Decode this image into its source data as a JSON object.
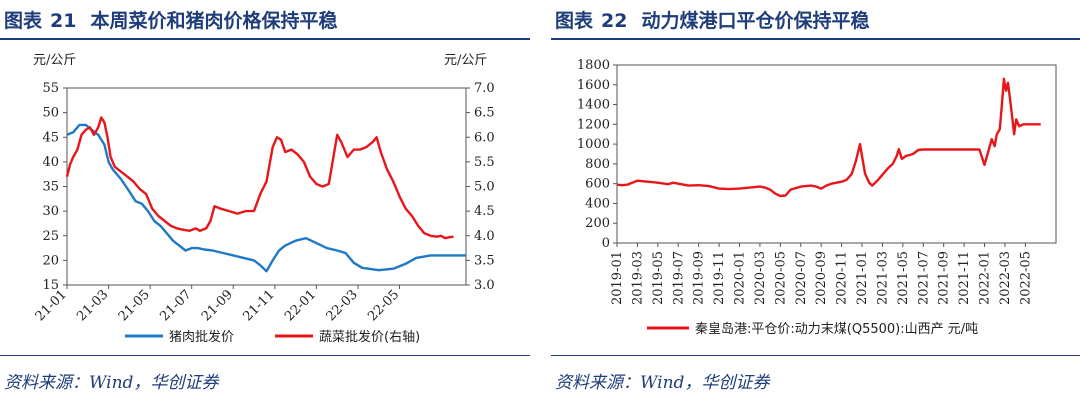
{
  "left": {
    "label": "图表",
    "number": "21",
    "title": "本周菜价和猪肉价格保持平稳",
    "source": "资料来源：Wind，华创证券"
  },
  "right": {
    "label": "图表",
    "number": "22",
    "title": "动力煤港口平仓价保持平稳",
    "source": "资料来源：Wind，华创证券"
  },
  "colors": {
    "blue": "#1f78c8",
    "red": "#e8161a",
    "accent": "#1f3d7a"
  },
  "chart_data": [
    {
      "type": "line",
      "title": "本周菜价和猪肉价格保持平稳",
      "ylabel": "元/公斤",
      "y2label": "元/公斤",
      "ylim": [
        15,
        55
      ],
      "y2lim": [
        3.0,
        7.0
      ],
      "yticks": [
        "15",
        "20",
        "25",
        "30",
        "35",
        "40",
        "45",
        "50",
        "55"
      ],
      "y2ticks": [
        "3.0",
        "3.5",
        "4.0",
        "4.5",
        "5.0",
        "5.5",
        "6.0",
        "6.5",
        "7.0"
      ],
      "xlim": [
        0,
        19.2
      ],
      "x_ticks": [
        {
          "x": 0,
          "label": "21-01"
        },
        {
          "x": 2,
          "label": "21-03"
        },
        {
          "x": 4,
          "label": "21-05"
        },
        {
          "x": 6,
          "label": "21-07"
        },
        {
          "x": 8,
          "label": "21-09"
        },
        {
          "x": 10,
          "label": "21-11"
        },
        {
          "x": 12,
          "label": "22-01"
        },
        {
          "x": 14,
          "label": "22-03"
        },
        {
          "x": 16,
          "label": "22-05"
        }
      ],
      "legend_position": "bottom",
      "series": [
        {
          "name": "猪肉批发价",
          "axis": "left",
          "color": "#1f78c8",
          "points": [
            [
              0,
              45.5
            ],
            [
              0.3,
              46
            ],
            [
              0.6,
              47.5
            ],
            [
              0.9,
              47.5
            ],
            [
              1.2,
              46.5
            ],
            [
              1.5,
              45.5
            ],
            [
              1.8,
              43.5
            ],
            [
              2.0,
              40
            ],
            [
              2.2,
              38.5
            ],
            [
              2.6,
              36.5
            ],
            [
              3.0,
              34
            ],
            [
              3.3,
              32
            ],
            [
              3.6,
              31.5
            ],
            [
              3.9,
              30
            ],
            [
              4.2,
              28
            ],
            [
              4.5,
              27
            ],
            [
              4.8,
              25.5
            ],
            [
              5.1,
              24
            ],
            [
              5.4,
              23
            ],
            [
              5.7,
              22
            ],
            [
              6.0,
              22.5
            ],
            [
              6.3,
              22.5
            ],
            [
              6.6,
              22.2
            ],
            [
              7.0,
              22
            ],
            [
              7.5,
              21.5
            ],
            [
              8.0,
              21
            ],
            [
              8.5,
              20.5
            ],
            [
              9.0,
              20
            ],
            [
              9.3,
              19
            ],
            [
              9.6,
              17.8
            ],
            [
              9.9,
              20
            ],
            [
              10.2,
              22
            ],
            [
              10.5,
              23
            ],
            [
              11.0,
              24
            ],
            [
              11.5,
              24.5
            ],
            [
              12.0,
              23.5
            ],
            [
              12.5,
              22.5
            ],
            [
              13.0,
              22
            ],
            [
              13.4,
              21.5
            ],
            [
              13.8,
              19.5
            ],
            [
              14.2,
              18.5
            ],
            [
              15.0,
              18
            ],
            [
              15.7,
              18.3
            ],
            [
              16.3,
              19.3
            ],
            [
              16.8,
              20.5
            ],
            [
              17.5,
              21
            ],
            [
              18.0,
              21
            ],
            [
              18.7,
              21
            ],
            [
              19.2,
              21
            ]
          ]
        },
        {
          "name": "蔬菜批发价(右轴)",
          "axis": "right",
          "color": "#e8161a",
          "points": [
            [
              0,
              5.2
            ],
            [
              0.15,
              5.45
            ],
            [
              0.3,
              5.6
            ],
            [
              0.5,
              5.75
            ],
            [
              0.7,
              6.05
            ],
            [
              0.9,
              6.15
            ],
            [
              1.1,
              6.2
            ],
            [
              1.3,
              6.05
            ],
            [
              1.5,
              6.2
            ],
            [
              1.65,
              6.4
            ],
            [
              1.8,
              6.3
            ],
            [
              1.95,
              6.0
            ],
            [
              2.1,
              5.6
            ],
            [
              2.3,
              5.4
            ],
            [
              2.6,
              5.3
            ],
            [
              2.9,
              5.2
            ],
            [
              3.2,
              5.1
            ],
            [
              3.5,
              4.95
            ],
            [
              3.8,
              4.85
            ],
            [
              4.1,
              4.55
            ],
            [
              4.4,
              4.4
            ],
            [
              4.7,
              4.3
            ],
            [
              5.0,
              4.2
            ],
            [
              5.3,
              4.15
            ],
            [
              5.6,
              4.12
            ],
            [
              5.9,
              4.1
            ],
            [
              6.2,
              4.15
            ],
            [
              6.4,
              4.1
            ],
            [
              6.7,
              4.15
            ],
            [
              6.9,
              4.3
            ],
            [
              7.1,
              4.6
            ],
            [
              7.4,
              4.55
            ],
            [
              7.8,
              4.5
            ],
            [
              8.2,
              4.45
            ],
            [
              8.6,
              4.5
            ],
            [
              9.0,
              4.5
            ],
            [
              9.3,
              4.85
            ],
            [
              9.6,
              5.1
            ],
            [
              9.9,
              5.8
            ],
            [
              10.1,
              6.0
            ],
            [
              10.3,
              5.95
            ],
            [
              10.5,
              5.7
            ],
            [
              10.8,
              5.75
            ],
            [
              11.1,
              5.65
            ],
            [
              11.4,
              5.5
            ],
            [
              11.7,
              5.2
            ],
            [
              12.0,
              5.05
            ],
            [
              12.3,
              5.0
            ],
            [
              12.6,
              5.05
            ],
            [
              12.8,
              5.55
            ],
            [
              13.0,
              6.05
            ],
            [
              13.2,
              5.9
            ],
            [
              13.5,
              5.6
            ],
            [
              13.8,
              5.75
            ],
            [
              14.1,
              5.75
            ],
            [
              14.4,
              5.8
            ],
            [
              14.7,
              5.9
            ],
            [
              14.9,
              6.0
            ],
            [
              15.1,
              5.7
            ],
            [
              15.4,
              5.35
            ],
            [
              15.7,
              5.1
            ],
            [
              16.0,
              4.8
            ],
            [
              16.3,
              4.55
            ],
            [
              16.6,
              4.4
            ],
            [
              16.9,
              4.2
            ],
            [
              17.2,
              4.05
            ],
            [
              17.5,
              4.0
            ],
            [
              17.8,
              3.98
            ],
            [
              18.0,
              4.0
            ],
            [
              18.2,
              3.95
            ],
            [
              18.4,
              3.97
            ],
            [
              18.6,
              3.98
            ]
          ]
        }
      ]
    },
    {
      "type": "line",
      "title": "动力煤港口平仓价保持平稳",
      "ylim": [
        0,
        1800
      ],
      "yticks": [
        "0",
        "200",
        "400",
        "600",
        "800",
        "1000",
        "1200",
        "1400",
        "1600",
        "1800"
      ],
      "xlim": [
        0,
        43
      ],
      "x_ticks": [
        {
          "x": 0,
          "label": "2019-01"
        },
        {
          "x": 2,
          "label": "2019-03"
        },
        {
          "x": 4,
          "label": "2019-05"
        },
        {
          "x": 6,
          "label": "2019-07"
        },
        {
          "x": 8,
          "label": "2019-09"
        },
        {
          "x": 10,
          "label": "2019-11"
        },
        {
          "x": 12,
          "label": "2020-01"
        },
        {
          "x": 14,
          "label": "2020-03"
        },
        {
          "x": 16,
          "label": "2020-05"
        },
        {
          "x": 18,
          "label": "2020-07"
        },
        {
          "x": 20,
          "label": "2020-09"
        },
        {
          "x": 22,
          "label": "2020-11"
        },
        {
          "x": 24,
          "label": "2021-01"
        },
        {
          "x": 26,
          "label": "2021-03"
        },
        {
          "x": 28,
          "label": "2021-05"
        },
        {
          "x": 30,
          "label": "2021-07"
        },
        {
          "x": 32,
          "label": "2021-09"
        },
        {
          "x": 34,
          "label": "2021-11"
        },
        {
          "x": 36,
          "label": "2022-01"
        },
        {
          "x": 38,
          "label": "2022-03"
        },
        {
          "x": 40,
          "label": "2022-05"
        }
      ],
      "legend_position": "bottom",
      "series": [
        {
          "name": "秦皇岛港:平仓价:动力末煤(Q5500):山西产 元/吨",
          "color": "#e8161a",
          "points": [
            [
              0,
              590
            ],
            [
              0.5,
              585
            ],
            [
              1,
              590
            ],
            [
              2,
              630
            ],
            [
              3,
              620
            ],
            [
              4,
              610
            ],
            [
              5,
              595
            ],
            [
              5.5,
              610
            ],
            [
              6,
              600
            ],
            [
              7,
              580
            ],
            [
              8,
              585
            ],
            [
              9,
              575
            ],
            [
              10,
              550
            ],
            [
              11,
              545
            ],
            [
              12,
              550
            ],
            [
              13,
              560
            ],
            [
              14,
              570
            ],
            [
              14.5,
              560
            ],
            [
              15,
              540
            ],
            [
              15.5,
              500
            ],
            [
              16,
              475
            ],
            [
              16.5,
              480
            ],
            [
              17,
              540
            ],
            [
              18,
              570
            ],
            [
              19,
              580
            ],
            [
              19.5,
              570
            ],
            [
              20,
              550
            ],
            [
              20.5,
              580
            ],
            [
              21,
              600
            ],
            [
              21.5,
              610
            ],
            [
              22,
              620
            ],
            [
              22.5,
              640
            ],
            [
              23,
              700
            ],
            [
              23.4,
              830
            ],
            [
              23.8,
              1000
            ],
            [
              24.0,
              880
            ],
            [
              24.3,
              700
            ],
            [
              24.7,
              610
            ],
            [
              25,
              580
            ],
            [
              25.5,
              630
            ],
            [
              26,
              690
            ],
            [
              26.5,
              750
            ],
            [
              27,
              800
            ],
            [
              27.4,
              880
            ],
            [
              27.6,
              950
            ],
            [
              27.9,
              850
            ],
            [
              28.3,
              880
            ],
            [
              29,
              900
            ],
            [
              29.5,
              940
            ],
            [
              30,
              945
            ],
            [
              31,
              945
            ],
            [
              32,
              945
            ],
            [
              33,
              945
            ],
            [
              34,
              945
            ],
            [
              35,
              945
            ],
            [
              35.5,
              945
            ],
            [
              35.8,
              850
            ],
            [
              36.0,
              790
            ],
            [
              36.3,
              900
            ],
            [
              36.7,
              1050
            ],
            [
              37.0,
              980
            ],
            [
              37.2,
              1100
            ],
            [
              37.5,
              1150
            ],
            [
              37.7,
              1400
            ],
            [
              37.9,
              1660
            ],
            [
              38.1,
              1540
            ],
            [
              38.3,
              1620
            ],
            [
              38.5,
              1450
            ],
            [
              38.7,
              1280
            ],
            [
              38.9,
              1100
            ],
            [
              39.1,
              1250
            ],
            [
              39.4,
              1180
            ],
            [
              39.8,
              1200
            ],
            [
              40.5,
              1200
            ],
            [
              41.5,
              1200
            ]
          ]
        }
      ]
    }
  ]
}
